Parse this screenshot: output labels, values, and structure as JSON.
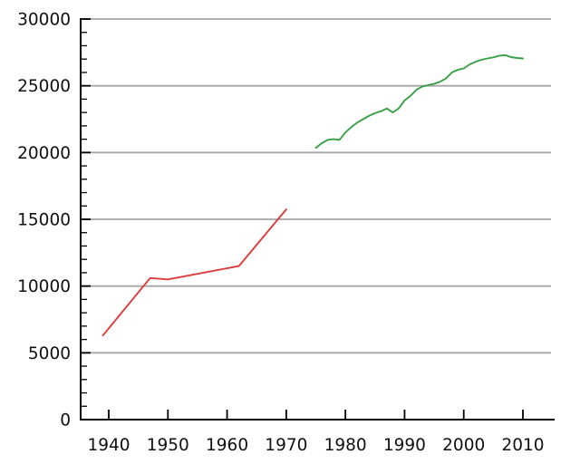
{
  "chart_data": {
    "type": "line",
    "title": "",
    "xlabel": "",
    "ylabel": "",
    "legend_position": "none",
    "grid": "horizontal-major",
    "background": "#ffffff",
    "axis_color": "#000000",
    "grid_color": "#a6a6a6",
    "xlim": [
      1935.3,
      2015.1
    ],
    "ylim": [
      0,
      30000
    ],
    "x_ticks": [
      1940,
      1950,
      1960,
      1970,
      1980,
      1990,
      2000,
      2010
    ],
    "y_ticks": [
      0,
      5000,
      10000,
      15000,
      20000,
      25000,
      30000
    ],
    "y_minor_step": 1000,
    "series": [
      {
        "name": "red-line",
        "color": "#dc3c3c",
        "x": [
          1939,
          1947,
          1950,
          1962,
          1970
        ],
        "values": [
          6300,
          10600,
          10500,
          11500,
          15750
        ]
      },
      {
        "name": "green-line",
        "color": "#3aa047",
        "x": [
          1975,
          1976,
          1977,
          1978,
          1979,
          1980,
          1981,
          1982,
          1983,
          1984,
          1985,
          1986,
          1987,
          1988,
          1989,
          1990,
          1991,
          1992,
          1993,
          1994,
          1995,
          1996,
          1997,
          1998,
          1999,
          2000,
          2001,
          2002,
          2003,
          2004,
          2005,
          2006,
          2007,
          2008,
          2009,
          2010
        ],
        "values": [
          20350,
          20700,
          20950,
          21000,
          20950,
          21500,
          21900,
          22250,
          22500,
          22750,
          22950,
          23100,
          23300,
          23000,
          23300,
          23900,
          24250,
          24700,
          24950,
          25050,
          25150,
          25300,
          25550,
          26000,
          26200,
          26300,
          26600,
          26800,
          26950,
          27050,
          27130,
          27250,
          27300,
          27150,
          27080,
          27050
        ]
      }
    ]
  }
}
